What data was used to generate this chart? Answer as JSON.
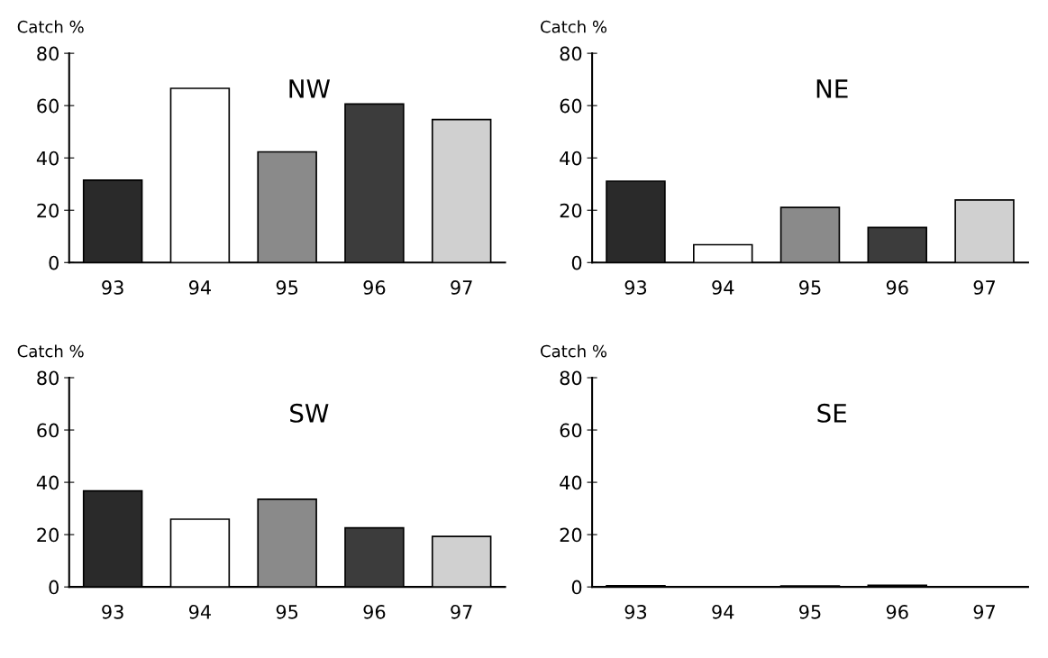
{
  "chart_data": [
    {
      "type": "bar",
      "title": "NW",
      "ylabel": "Catch %",
      "categories": [
        "93",
        "94",
        "95",
        "96",
        "97"
      ],
      "values": [
        31.5,
        66.6,
        42.3,
        60.6,
        54.7
      ],
      "colors": [
        "#2a2a2a",
        "#ffffff",
        "#8a8a8a",
        "#3c3c3c",
        "#d0d0d0"
      ],
      "ylim": [
        0,
        80
      ],
      "yticks": [
        0,
        20,
        40,
        60,
        80
      ],
      "grid": false,
      "legend": false
    },
    {
      "type": "bar",
      "title": "NE",
      "ylabel": "Catch %",
      "categories": [
        "93",
        "94",
        "95",
        "96",
        "97"
      ],
      "values": [
        31.1,
        6.8,
        21.1,
        13.4,
        23.9
      ],
      "colors": [
        "#2a2a2a",
        "#ffffff",
        "#8a8a8a",
        "#3c3c3c",
        "#d0d0d0"
      ],
      "ylim": [
        0,
        80
      ],
      "yticks": [
        0,
        20,
        40,
        60,
        80
      ],
      "grid": false,
      "legend": false
    },
    {
      "type": "bar",
      "title": "SW",
      "ylabel": "Catch %",
      "categories": [
        "93",
        "94",
        "95",
        "96",
        "97"
      ],
      "values": [
        36.7,
        25.9,
        33.5,
        22.6,
        19.3
      ],
      "colors": [
        "#2a2a2a",
        "#ffffff",
        "#8a8a8a",
        "#3c3c3c",
        "#d0d0d0"
      ],
      "ylim": [
        0,
        80
      ],
      "yticks": [
        0,
        20,
        40,
        60,
        80
      ],
      "grid": false,
      "legend": false
    },
    {
      "type": "bar",
      "title": "SE",
      "ylabel": "Catch %",
      "categories": [
        "93",
        "94",
        "95",
        "96",
        "97"
      ],
      "values": [
        0.5,
        0,
        0.4,
        0.6,
        0
      ],
      "colors": [
        "#2a2a2a",
        "#ffffff",
        "#8a8a8a",
        "#3c3c3c",
        "#d0d0d0"
      ],
      "ylim": [
        0,
        80
      ],
      "yticks": [
        0,
        20,
        40,
        60,
        80
      ],
      "grid": false,
      "legend": false
    }
  ]
}
